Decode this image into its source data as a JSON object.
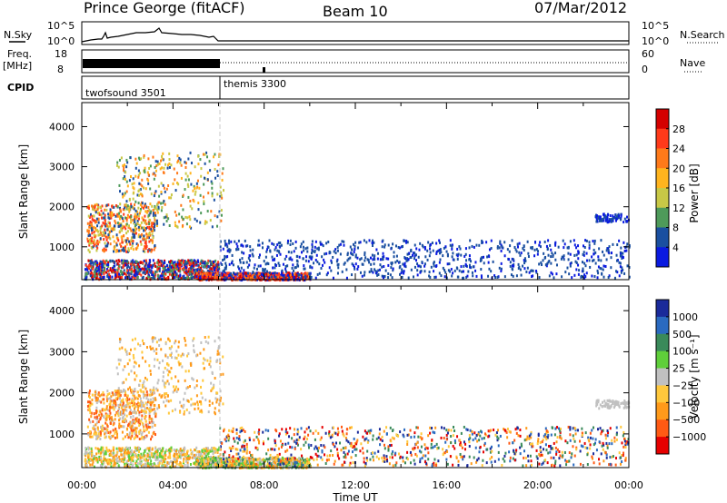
{
  "header": {
    "station": "Prince George (fitACF)",
    "beam": "Beam 10",
    "date": "07/Mar/2012"
  },
  "panels": {
    "noise": {
      "left_label": "N.Sky",
      "right_label": "N.Search",
      "left_ticks": [
        "10^5",
        "10^0"
      ],
      "right_ticks": [
        "10^5",
        "10^0"
      ]
    },
    "freq": {
      "left_label_1": "Freq.",
      "left_label_2": "[MHz]",
      "left_ticks": [
        "18",
        "8"
      ],
      "right_label": "Nave",
      "right_ticks": [
        "60",
        "0"
      ]
    },
    "cpid": {
      "label": "CPID",
      "modes": [
        "twofsound 3501",
        "themis 3300"
      ]
    }
  },
  "power_colorbar": {
    "title": "Power [dB]",
    "ticks": [
      "28",
      "24",
      "20",
      "16",
      "12",
      "8",
      "4"
    ],
    "colors": [
      "#d40000",
      "#ff3a1a",
      "#ff7a1a",
      "#ffb41e",
      "#c8c846",
      "#4e9a5a",
      "#1a4fa0",
      "#0a1ae0"
    ]
  },
  "velocity_colorbar": {
    "title": "Velocity [m s⁻¹]",
    "ticks": [
      "1000",
      "500",
      "100",
      "25",
      "−25",
      "−100",
      "−500",
      "−1000"
    ],
    "colors": [
      "#1a2a9a",
      "#2a6ac0",
      "#3a8a5a",
      "#5fcf3a",
      "#c0c0c0",
      "#ffc83c",
      "#ff9a1a",
      "#ff5a14",
      "#e60000"
    ]
  },
  "chart_data": {
    "type": "heatmap",
    "xlabel": "Time UT",
    "ylabel": "Slant Range [km]",
    "x_ticks": [
      "00:00",
      "04:00",
      "08:00",
      "12:00",
      "16:00",
      "20:00",
      "00:00"
    ],
    "y_ticks": [
      "1000",
      "2000",
      "3000",
      "4000"
    ],
    "xlim_hours": [
      0,
      24
    ],
    "ylim_km": [
      180,
      4600
    ],
    "mode_change_hour": 6.0
  }
}
